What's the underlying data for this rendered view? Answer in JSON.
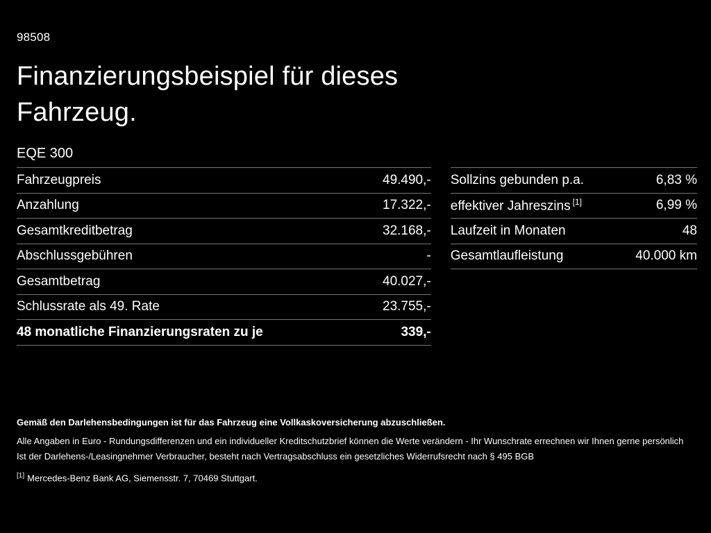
{
  "header": {
    "id": "98508",
    "title_line1": "Finanzierungsbeispiel für dieses",
    "title_line2": "Fahrzeug.",
    "model": "EQE 300"
  },
  "left_table": {
    "rows": [
      {
        "label": "Fahrzeugpreis",
        "value": "49.490,-"
      },
      {
        "label": "Anzahlung",
        "value": "17.322,-"
      },
      {
        "label": "Gesamtkreditbetrag",
        "value": "32.168,-"
      },
      {
        "label": "Abschlussgebühren",
        "value": "-"
      },
      {
        "label": "Gesamtbetrag",
        "value": "40.027,-"
      },
      {
        "label": "Schlussrate als 49. Rate",
        "value": "23.755,-"
      },
      {
        "label": "48 monatliche Finanzierungsraten zu je",
        "value": "339,-"
      }
    ]
  },
  "right_table": {
    "rows": [
      {
        "label": "Sollzins gebunden p.a.",
        "value": "6,83 %"
      },
      {
        "label": "effektiver Jahreszins",
        "sup": "[1]",
        "value": "6,99 %"
      },
      {
        "label": "Laufzeit in Monaten",
        "value": "48"
      },
      {
        "label": "Gesamtlaufleistung",
        "value": "40.000 km"
      }
    ]
  },
  "footer": {
    "insurance_note": "Gemäß den Darlehensbedingungen ist für das Fahrzeug eine Vollkaskoversicherung abzuschließen.",
    "disclaimer_line1": "Alle Angaben in Euro - Rundungsdifferenzen und ein individueller Kreditschutzbrief können die Werte verändern - Ihr Wunschrate errechnen wir Ihnen gerne persönlich",
    "disclaimer_line2": "Ist der Darlehens-/Leasingnehmer Verbraucher, besteht nach Vertragsabschluss ein gesetzliches Widerrufsrecht nach § 495 BGB",
    "footnote_marker": "[1]",
    "footnote_text": "Mercedes-Benz Bank AG, Siemensstr. 7, 70469 Stuttgart."
  },
  "colors": {
    "background": "#000000",
    "text": "#ffffff",
    "divider": "#777777"
  }
}
